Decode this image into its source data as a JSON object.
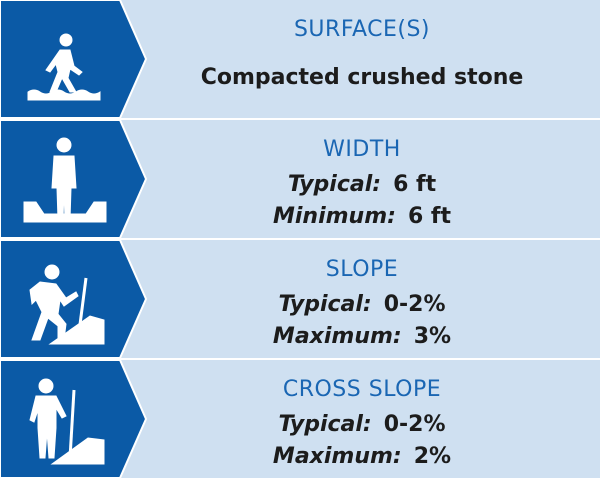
{
  "rows": [
    {
      "title": "SURFACE(S)",
      "lines": [
        {
          "text": "Compacted crushed stone"
        }
      ]
    },
    {
      "title": "WIDTH",
      "lines": [
        {
          "label": "Typical:",
          "value": "6 ft"
        },
        {
          "label": "Minimum:",
          "value": "6 ft"
        }
      ]
    },
    {
      "title": "SLOPE",
      "lines": [
        {
          "label": "Typical:",
          "value": "0-2%"
        },
        {
          "label": "Maximum:",
          "value": "3%"
        }
      ]
    },
    {
      "title": "CROSS SLOPE",
      "lines": [
        {
          "label": "Typical:",
          "value": "0-2%"
        },
        {
          "label": "Maximum:",
          "value": "2%"
        }
      ]
    }
  ]
}
